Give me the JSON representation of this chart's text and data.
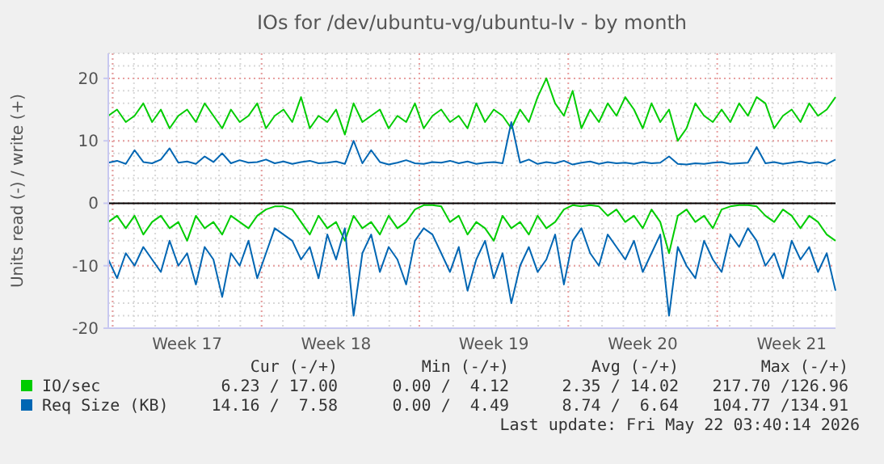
{
  "chart_data": {
    "type": "line",
    "title": "IOs for /dev/ubuntu-vg/ubuntu-lv - by month",
    "ylabel": "Units read (-) / write (+)",
    "categories": [
      null,
      null,
      null,
      null,
      null,
      null,
      null,
      null,
      null,
      "Week 17",
      null,
      null,
      null,
      null,
      null,
      null,
      null,
      null,
      null,
      null,
      null,
      null,
      null,
      null,
      null,
      null,
      "Week 18",
      null,
      null,
      null,
      null,
      null,
      null,
      null,
      null,
      null,
      null,
      null,
      null,
      null,
      null,
      null,
      null,
      null,
      "Week 19",
      null,
      null,
      null,
      null,
      null,
      null,
      null,
      null,
      null,
      null,
      null,
      null,
      null,
      null,
      null,
      null,
      "Week 20",
      null,
      null,
      null,
      null,
      null,
      null,
      null,
      null,
      null,
      null,
      null,
      null,
      null,
      null,
      null,
      null,
      "Week 21",
      null,
      null,
      null,
      null,
      null
    ],
    "series": [
      {
        "name": "IO/sec",
        "color": "#00cc00",
        "values": [
          14,
          15,
          13,
          14,
          16,
          13,
          15,
          12,
          14,
          15,
          13,
          16,
          14,
          12,
          15,
          13,
          14,
          16,
          12,
          14,
          15,
          13,
          17,
          12,
          14,
          13,
          15,
          11,
          16,
          13,
          14,
          15,
          12,
          14,
          13,
          16,
          12,
          14,
          15,
          13,
          14,
          12,
          16,
          13,
          15,
          14,
          12,
          15,
          13,
          17,
          20,
          16,
          14,
          18,
          12,
          15,
          13,
          16,
          14,
          17,
          15,
          12,
          16,
          13,
          15,
          10,
          12,
          16,
          14,
          13,
          15,
          13,
          16,
          14,
          17,
          16,
          12,
          14,
          15,
          13,
          16,
          14,
          15,
          17
        ]
      },
      {
        "name": "Req Size (KB)",
        "color": "#0066b3",
        "values": [
          6.5,
          6.8,
          6.3,
          8.5,
          6.6,
          6.4,
          7,
          8.8,
          6.5,
          6.7,
          6.3,
          7.5,
          6.6,
          8,
          6.4,
          6.9,
          6.5,
          6.6,
          7,
          6.4,
          6.7,
          6.3,
          6.6,
          6.8,
          6.4,
          6.5,
          6.7,
          6.3,
          10,
          6.4,
          8.5,
          6.6,
          6.2,
          6.5,
          6.9,
          6.4,
          6.3,
          6.6,
          6.5,
          6.8,
          6.4,
          6.7,
          6.3,
          6.5,
          6.6,
          6.4,
          13,
          6.5,
          7,
          6.3,
          6.6,
          6.4,
          6.8,
          6.2,
          6.5,
          6.7,
          6.3,
          6.6,
          6.4,
          6.5,
          6.3,
          6.6,
          6.4,
          6.5,
          7.5,
          6.3,
          6.2,
          6.4,
          6.3,
          6.5,
          6.6,
          6.3,
          6.4,
          6.5,
          9,
          6.4,
          6.6,
          6.3,
          6.5,
          6.7,
          6.4,
          6.6,
          6.3,
          7
        ]
      },
      {
        "color": "#00cc00",
        "values": [
          -3,
          -2,
          -4,
          -2,
          -5,
          -3,
          -2,
          -4,
          -3,
          -6,
          -2,
          -4,
          -3,
          -5,
          -2,
          -3,
          -4,
          -2,
          -1,
          -0.5,
          -0.5,
          -1,
          -3,
          -5,
          -2,
          -4,
          -3,
          -6,
          -2,
          -4,
          -3,
          -5,
          -2,
          -4,
          -3,
          -1,
          -0.3,
          -0.3,
          -0.5,
          -3,
          -2,
          -5,
          -3,
          -4,
          -6,
          -2,
          -4,
          -3,
          -5,
          -2,
          -4,
          -3,
          -1,
          -0.3,
          -0.5,
          -0.3,
          -0.5,
          -2,
          -1,
          -3,
          -2,
          -4,
          -1,
          -3,
          -8,
          -2,
          -1,
          -3,
          -2,
          -4,
          -1,
          -0.5,
          -0.3,
          -0.3,
          -0.5,
          -2,
          -3,
          -1,
          -2,
          -4,
          -2,
          -3,
          -5,
          -6
        ]
      },
      {
        "color": "#0066b3",
        "values": [
          -9,
          -12,
          -8,
          -10,
          -7,
          -9,
          -11,
          -6,
          -10,
          -8,
          -13,
          -7,
          -9,
          -15,
          -8,
          -10,
          -6,
          -12,
          -8,
          -4,
          -5,
          -6,
          -9,
          -7,
          -12,
          -5,
          -9,
          -4,
          -18,
          -8,
          -5,
          -11,
          -7,
          -9,
          -13,
          -6,
          -4,
          -5,
          -8,
          -11,
          -7,
          -14,
          -9,
          -6,
          -12,
          -8,
          -16,
          -10,
          -7,
          -11,
          -9,
          -5,
          -13,
          -6,
          -4,
          -8,
          -10,
          -5,
          -7,
          -9,
          -6,
          -11,
          -8,
          -5,
          -18,
          -7,
          -10,
          -12,
          -6,
          -9,
          -11,
          -5,
          -7,
          -4,
          -6,
          -10,
          -8,
          -12,
          -6,
          -9,
          -7,
          -11,
          -8,
          -14
        ]
      }
    ],
    "ylim": [
      -20,
      24
    ],
    "yticks": [
      -20,
      -10,
      0,
      10,
      20
    ],
    "grid": true,
    "legend": "bottom",
    "line_style": "solid",
    "marker": "none",
    "ref_lines": [
      {
        "axis": "y",
        "value": 0,
        "color": "#000000"
      }
    ],
    "annotations": [
      "Cur (-/+)",
      "Min (-/+)",
      "Avg (-/+)",
      "Max (-/+)",
      "6.23 / 17.00",
      "0.00 /  4.12",
      "2.35 / 14.02",
      "217.70 /126.96",
      "14.16 /  7.58",
      "0.00 /  4.49",
      "8.74 /  6.64",
      "104.77 /134.91",
      "Last update: Fri May 22 03:40:14 2026"
    ]
  }
}
